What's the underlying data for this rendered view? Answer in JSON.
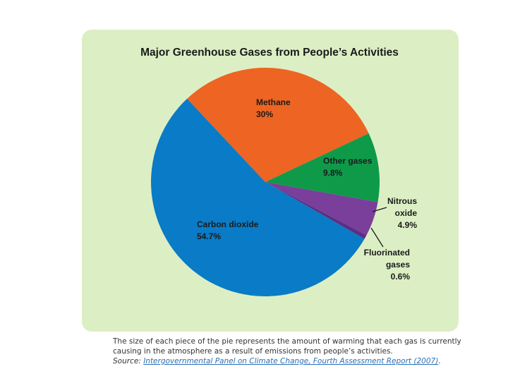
{
  "colors": {
    "panel_bg": "#dcefc4",
    "carbon_dioxide": "#0a7bc6",
    "methane": "#ee6422",
    "other_gases": "#0f9a4a",
    "nitrous_oxide": "#7a3f9a",
    "fluorinated_gases": "#5a2f86"
  },
  "chart_data": {
    "type": "pie",
    "title": "Major Greenhouse Gases from People’s Activities",
    "slices": [
      {
        "key": "carbon_dioxide",
        "label_lines": [
          "Carbon dioxide"
        ],
        "value_text": "54.7%",
        "value": 54.7
      },
      {
        "key": "methane",
        "label_lines": [
          "Methane"
        ],
        "value_text": "30%",
        "value": 30
      },
      {
        "key": "other_gases",
        "label_lines": [
          "Other gases"
        ],
        "value_text": "9.8%",
        "value": 9.8
      },
      {
        "key": "nitrous_oxide",
        "label_lines": [
          "Nitrous",
          "oxide"
        ],
        "value_text": "4.9%",
        "value": 4.9
      },
      {
        "key": "fluorinated_gases",
        "label_lines": [
          "Fluorinated",
          "gases"
        ],
        "value_text": "0.6%",
        "value": 0.6
      }
    ]
  },
  "caption": {
    "text": "The size of each piece of the pie represents the amount of warming that each gas is currently causing in the atmosphere as a result of emissions from people’s activities.",
    "source_label": "Source:",
    "source_link": "Intergovernmental Panel on Climate Change, Fourth Assessment Report (2007)",
    "source_end": "."
  }
}
